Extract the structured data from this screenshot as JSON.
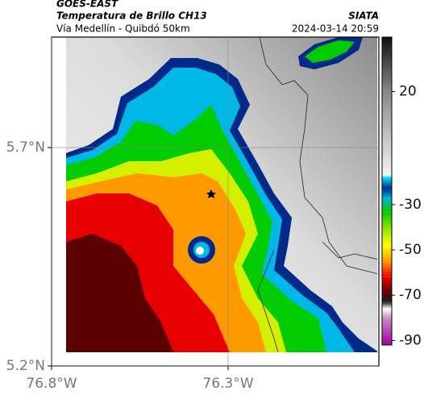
{
  "header": {
    "source": "GOES-EAST",
    "title": "Temperatura de Brillo CH13",
    "org": "SIATA",
    "route": "Vía Medellín - Quibdó 50km",
    "datetime": "2024-03-14 20:59"
  },
  "map": {
    "xlim": [
      -76.8,
      -75.873
    ],
    "ylim": [
      5.2,
      5.953
    ],
    "xticks": [
      {
        "value": -76.8,
        "label": "76.8°W"
      },
      {
        "value": -76.3,
        "label": "76.3°W"
      }
    ],
    "yticks": [
      {
        "value": 5.2,
        "label": "5.2°N"
      },
      {
        "value": 5.7,
        "label": "5.7°N"
      }
    ],
    "grid": true
  },
  "colorbar": {
    "lim": [
      -92,
      44
    ],
    "ticks": [
      20,
      -30,
      -50,
      -70,
      -90
    ],
    "stops": [
      {
        "value": 44,
        "color": "#111111"
      },
      {
        "value": 20,
        "color": "#888888"
      },
      {
        "value": -17,
        "color": "#f4f4f4"
      },
      {
        "value": -18,
        "color": "#00e0ff"
      },
      {
        "value": -23,
        "color": "#002a8a"
      },
      {
        "value": -27,
        "color": "#00b0e0"
      },
      {
        "value": -33,
        "color": "#00cc00"
      },
      {
        "value": -42,
        "color": "#a8e800"
      },
      {
        "value": -48,
        "color": "#ffff00"
      },
      {
        "value": -55,
        "color": "#ff9900"
      },
      {
        "value": -62,
        "color": "#ee0000"
      },
      {
        "value": -69,
        "color": "#5a0000"
      },
      {
        "value": -73,
        "color": "#222222"
      },
      {
        "value": -76,
        "color": "#ffffff"
      },
      {
        "value": -80,
        "color": "#c890c8"
      },
      {
        "value": -92,
        "color": "#a000a0"
      }
    ]
  }
}
